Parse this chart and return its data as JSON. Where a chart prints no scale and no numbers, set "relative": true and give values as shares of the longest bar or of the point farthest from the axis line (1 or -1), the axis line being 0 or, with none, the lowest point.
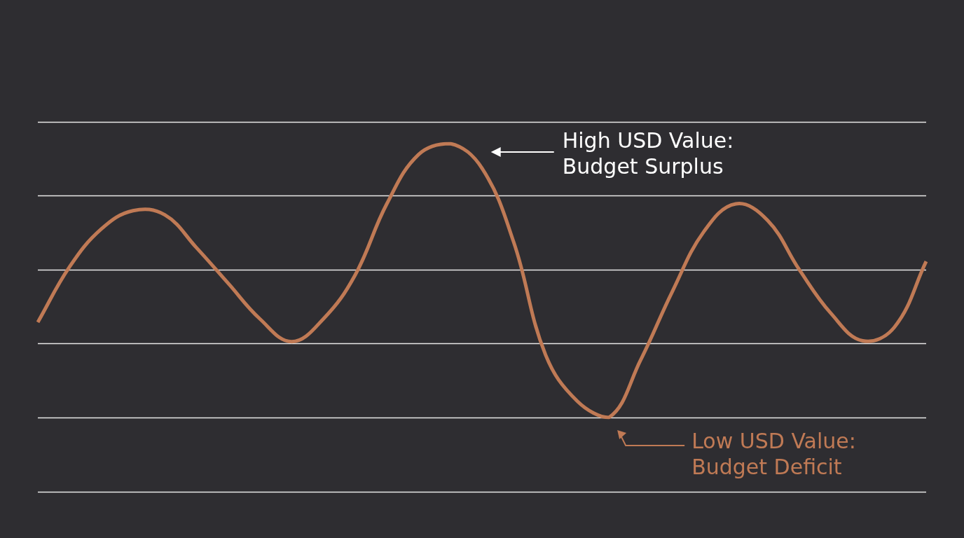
{
  "chart_data": {
    "type": "line",
    "relative": true,
    "categories": [
      null,
      null,
      null,
      null,
      null,
      null,
      null,
      null,
      null,
      null,
      null,
      null,
      null,
      null,
      null,
      null,
      null,
      null,
      null,
      null,
      null,
      null,
      null,
      null,
      null,
      null,
      null,
      null,
      null
    ],
    "series": [
      {
        "color": "#c07a55",
        "values": [
          0.348,
          0.55,
          0.688,
          0.755,
          0.74,
          0.62,
          0.49,
          0.36,
          0.277,
          0.36,
          0.52,
          0.78,
          0.96,
          1,
          0.91,
          0.64,
          0.23,
          0.06,
          0,
          0.21,
          0.46,
          0.68,
          0.78,
          0.72,
          0.54,
          0.38,
          0.28,
          0.33,
          0.57
        ]
      }
    ],
    "annotations": [
      "High USD Value:\nBudget Surplus",
      "Low USD Value:\nBudget Deficit"
    ],
    "grid": "y",
    "legend": false,
    "tick_labels": false,
    "marker": "none",
    "line_style": "solid"
  }
}
